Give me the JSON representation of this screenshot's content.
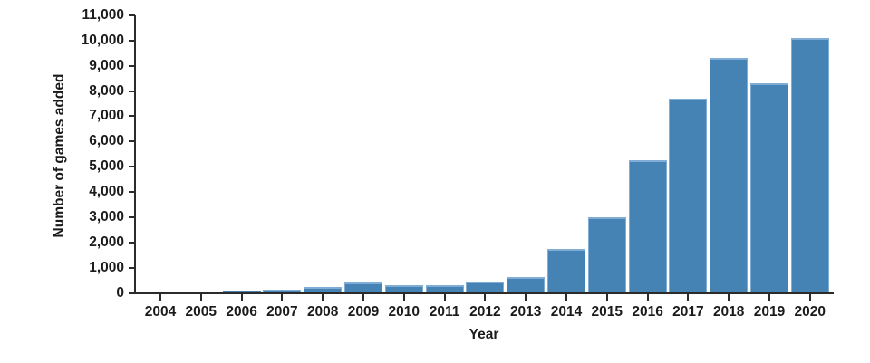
{
  "chart_data": {
    "type": "bar",
    "title": "",
    "xlabel": "Year",
    "ylabel": "Number of games added",
    "categories": [
      "2004",
      "2005",
      "2006",
      "2007",
      "2008",
      "2009",
      "2010",
      "2011",
      "2012",
      "2013",
      "2014",
      "2015",
      "2016",
      "2017",
      "2018",
      "2019",
      "2020"
    ],
    "values": [
      10,
      20,
      90,
      140,
      230,
      410,
      290,
      310,
      450,
      620,
      1750,
      3000,
      5270,
      7700,
      9300,
      8300,
      10100
    ],
    "ylim": [
      0,
      11000
    ],
    "ytick_step": 1000,
    "ytick_labels": [
      "0",
      "1,000",
      "2,000",
      "3,000",
      "4,000",
      "5,000",
      "6,000",
      "7,000",
      "8,000",
      "9,000",
      "10,000",
      "11,000"
    ],
    "grid": false,
    "legend_position": "none",
    "colors": {
      "bar_fill": "#4583b5",
      "bar_edge": "#7fadd6",
      "axis": "#2b2b2b",
      "text": "#1b1b1b",
      "background": "#ffffff"
    }
  }
}
